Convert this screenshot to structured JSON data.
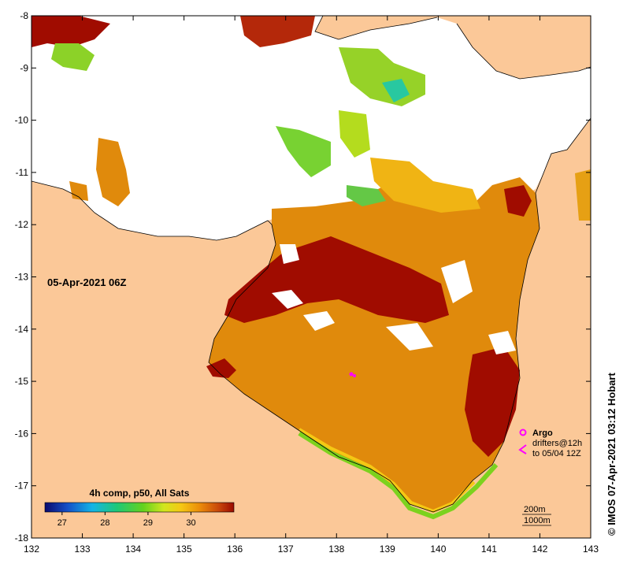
{
  "map": {
    "date_label": "05-Apr-2021 06Z",
    "x_ticks": [
      "132",
      "133",
      "134",
      "135",
      "136",
      "137",
      "138",
      "139",
      "140",
      "141",
      "142",
      "143"
    ],
    "y_ticks": [
      "-8",
      "-9",
      "-10",
      "-11",
      "-12",
      "-13",
      "-14",
      "-15",
      "-16",
      "-17",
      "-18"
    ],
    "lon_range": [
      132,
      143
    ],
    "lat_range": [
      -18,
      -8
    ]
  },
  "colorbar": {
    "title": "4h comp, p50, All Sats",
    "ticks": [
      "27",
      "28",
      "29",
      "30"
    ],
    "tick_values": [
      27,
      28,
      29,
      30
    ],
    "range": [
      26.6,
      31.0
    ]
  },
  "legend": {
    "argo_label": "Argo",
    "drifters_line1": "drifters@12h",
    "drifters_line2": "to 05/04 12Z",
    "contour_200": "200m",
    "contour_1000": "1000m"
  },
  "credit": "© IMOS 07-Apr-2021 03:12 Hobart",
  "colors": {
    "land": "#fbc898",
    "no_data": "#ffffff",
    "sst_hot": "#a00c00",
    "sst_warm": "#e08a0c",
    "argo_marker": "#ff00ff"
  }
}
